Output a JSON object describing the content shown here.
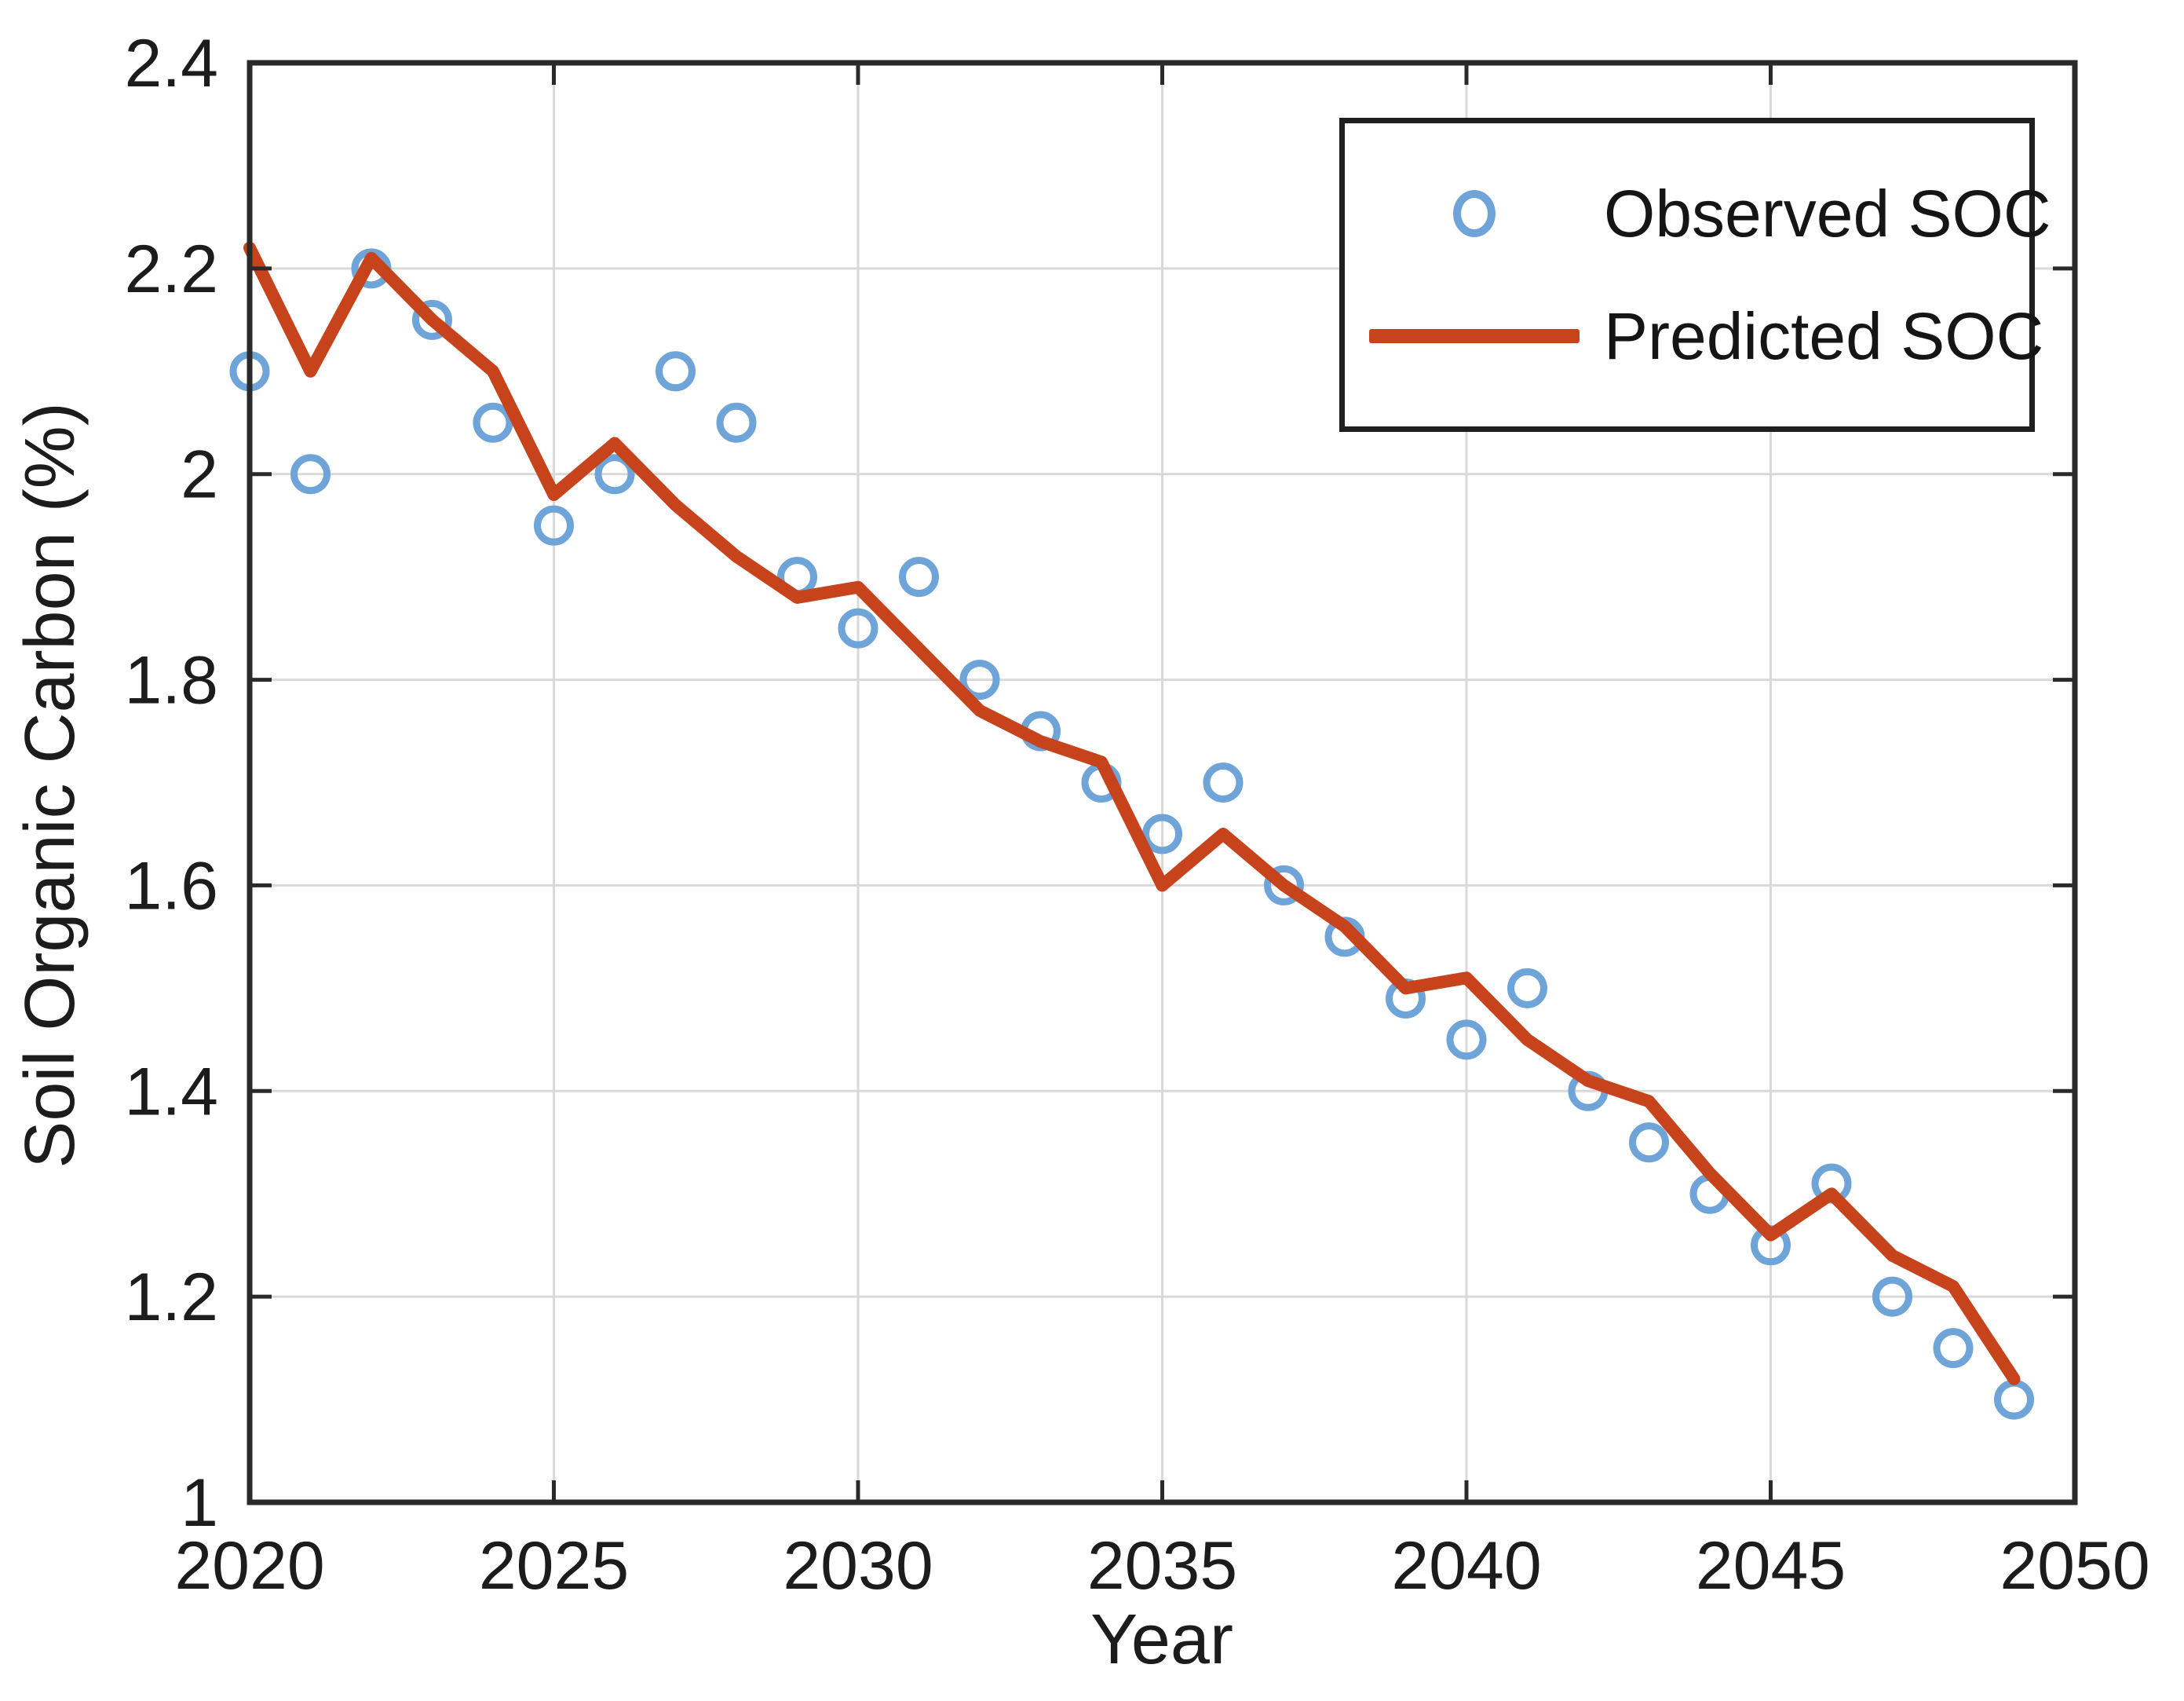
{
  "figure": {
    "background": "#ffffff"
  },
  "chart_data": {
    "type": "line",
    "title": "",
    "xlabel": "Year",
    "ylabel": "Soil Organic Carbon (%)",
    "xlim": [
      2020,
      2050
    ],
    "ylim": [
      1.0,
      2.4
    ],
    "x_ticks": [
      2020,
      2025,
      2030,
      2035,
      2040,
      2045,
      2050
    ],
    "y_ticks": [
      1,
      1.2,
      1.4,
      1.6,
      1.8,
      2,
      2.2,
      2.4
    ],
    "grid": true,
    "legend_position": "top-right",
    "x": [
      2020,
      2021,
      2022,
      2023,
      2024,
      2025,
      2026,
      2027,
      2028,
      2029,
      2030,
      2031,
      2032,
      2033,
      2034,
      2035,
      2036,
      2037,
      2038,
      2039,
      2040,
      2041,
      2042,
      2043,
      2044,
      2045,
      2046,
      2047,
      2048,
      2049
    ],
    "series": [
      {
        "name": "Observed SOC",
        "type": "scatter",
        "marker": "circle",
        "color": "#6FA4D8",
        "values": [
          2.1,
          2.0,
          2.2,
          2.15,
          2.05,
          1.95,
          2.0,
          2.1,
          2.05,
          1.9,
          1.85,
          1.9,
          1.8,
          1.75,
          1.7,
          1.65,
          1.7,
          1.6,
          1.55,
          1.49,
          1.45,
          1.5,
          1.4,
          1.35,
          1.3,
          1.25,
          1.31,
          1.2,
          1.15,
          1.1
        ]
      },
      {
        "name": "Predicted SOC",
        "type": "line",
        "color": "#C7431C",
        "values": [
          2.22,
          2.1,
          2.21,
          2.15,
          2.1,
          1.98,
          2.03,
          1.97,
          1.92,
          1.88,
          1.89,
          1.83,
          1.77,
          1.74,
          1.72,
          1.6,
          1.65,
          1.6,
          1.56,
          1.5,
          1.51,
          1.45,
          1.41,
          1.39,
          1.32,
          1.26,
          1.3,
          1.24,
          1.21,
          1.12
        ]
      }
    ],
    "axis_color": "#2a2a2a",
    "grid_color": "#d9d9d9",
    "text_color": "#1c1c1c"
  }
}
